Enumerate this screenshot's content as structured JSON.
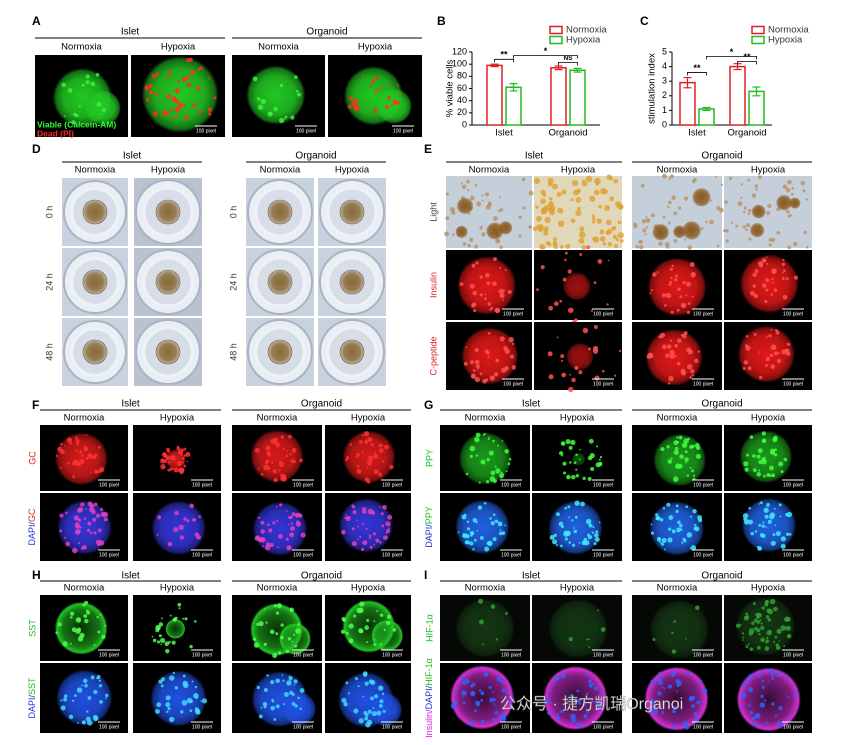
{
  "figure": {
    "panels": [
      {
        "label": "A",
        "groups": [
          "Islet",
          "Organoid"
        ],
        "columns": [
          "Normoxia",
          "Hypoxia",
          "Normoxia",
          "Hypoxia"
        ],
        "legend": [
          "Viable (Calcein-AM)",
          "Dead (PI)"
        ],
        "rows": [
          {
            "scale_bars": [
              null,
              "100 pixel",
              "100 pixel",
              "100 pixel"
            ]
          }
        ]
      },
      {
        "label": "D",
        "groups": [
          "Islet",
          "Organoid"
        ],
        "columns": [
          "Normoxia",
          "Hypoxia",
          "Normoxia",
          "Hypoxia"
        ],
        "rows": [
          {
            "name": "0 h"
          },
          {
            "name": "24 h"
          },
          {
            "name": "48 h"
          }
        ]
      },
      {
        "label": "E",
        "groups": [
          "Islet",
          "Organoid"
        ],
        "columns": [
          "Normoxia",
          "Hypoxia",
          "Normoxia",
          "Hypoxia"
        ],
        "rows": [
          {
            "name": "Light"
          },
          {
            "name": "Insulin",
            "scale_bars": [
              "100 pixel",
              "100 pixel",
              "100 pixel",
              "100 pixel"
            ]
          },
          {
            "name": "C-peptide",
            "scale_bars": [
              "100 pixel",
              "100 pixel",
              "100 pixel",
              "100 pixel"
            ]
          }
        ]
      },
      {
        "label": "F",
        "groups": [
          "Islet",
          "Organoid"
        ],
        "columns": [
          "Normoxia",
          "Hypoxia",
          "Normoxia",
          "Hypoxia"
        ],
        "rows": [
          {
            "name": "GC",
            "scale_bars": [
              "100 pixel",
              "100 pixel",
              "100 pixel",
              "100 pixel"
            ]
          },
          {
            "name": "DAPI/GC",
            "scale_bars": [
              "100 pixel",
              "100 pixel",
              "100 pixel",
              "100 pixel"
            ]
          }
        ]
      },
      {
        "label": "G",
        "groups": [
          "Islet",
          "Organoid"
        ],
        "columns": [
          "Normoxia",
          "Hypoxia",
          "Normoxia",
          "Hypoxia"
        ],
        "rows": [
          {
            "name": "PPY",
            "scale_bars": [
              "100 pixel",
              "100 pixel",
              "100 pixel",
              "100 pixel"
            ]
          },
          {
            "name": "DAPI/PPY",
            "scale_bars": [
              "100 pixel",
              "100 pixel",
              "100 pixel",
              "100 pixel"
            ]
          }
        ]
      },
      {
        "label": "H",
        "groups": [
          "Islet",
          "Organoid"
        ],
        "columns": [
          "Normoxia",
          "Hypoxia",
          "Normoxia",
          "Hypoxia"
        ],
        "rows": [
          {
            "name": "SST",
            "scale_bars": [
              "100 pixel",
              "100 pixel",
              "100 pixel",
              "100 pixel"
            ]
          },
          {
            "name": "DAPI/SST",
            "scale_bars": [
              "100 pixel",
              "100 pixel",
              "100 pixel",
              "100 pixel"
            ]
          }
        ]
      },
      {
        "label": "I",
        "groups": [
          "Islet",
          "Organoid"
        ],
        "columns": [
          "Normoxia",
          "Hypoxia",
          "Normoxia",
          "Hypoxia"
        ],
        "watermark": "公众号 · 捷方凯瑞Organoi",
        "rows": [
          {
            "name": "HIF-1α",
            "scale_bars": [
              "100 pixel",
              "100 pixel",
              "100 pixel",
              "100 pixel"
            ]
          },
          {
            "name": "Insulin/DAPI/HIF-1α",
            "scale_bars": [
              "100 pixel",
              "100 pixel",
              "100 pixel",
              "100 pixel"
            ]
          }
        ]
      }
    ]
  },
  "chart_data": [
    {
      "type": "bar",
      "panel_label": "B",
      "y_label": "% viable cells",
      "categories": [
        "Islet",
        "Organoid"
      ],
      "series": [
        {
          "name": "Normoxia",
          "color": "#e02020",
          "values": [
            98,
            94
          ],
          "errors": [
            2,
            3
          ]
        },
        {
          "name": "Hypoxia",
          "color": "#22bb22",
          "values": [
            62,
            90
          ],
          "errors": [
            6,
            3
          ]
        }
      ],
      "ylim": [
        0,
        120
      ],
      "yticks": [
        0,
        20,
        40,
        60,
        80,
        100,
        120
      ],
      "annotations": [
        "**",
        "*",
        "NS"
      ]
    },
    {
      "type": "bar",
      "panel_label": "C",
      "y_label": "stimulation index",
      "categories": [
        "Islet",
        "Organoid"
      ],
      "series": [
        {
          "name": "Normoxia",
          "color": "#e02020",
          "values": [
            2.9,
            4.0
          ],
          "errors": [
            0.35,
            0.2
          ]
        },
        {
          "name": "Hypoxia",
          "color": "#22bb22",
          "values": [
            1.1,
            2.3
          ],
          "errors": [
            0.1,
            0.3
          ]
        }
      ],
      "ylim": [
        0,
        5
      ],
      "yticks": [
        0,
        1,
        2,
        3,
        4,
        5
      ],
      "annotations": [
        "**",
        "*",
        "**"
      ]
    }
  ]
}
